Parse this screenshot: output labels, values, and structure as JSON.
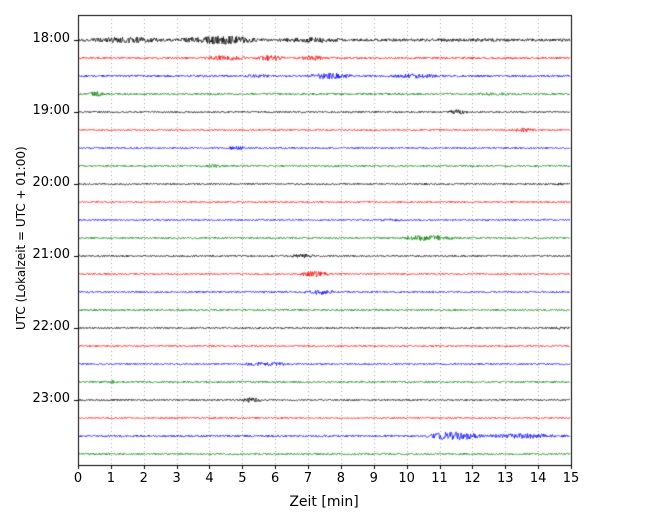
{
  "figure": {
    "background": "#ffffff",
    "frame_color": "#000000"
  },
  "chart_data": {
    "type": "line",
    "subtype": "seismogram-multitrace",
    "title": "",
    "xlabel": "Zeit  [min]",
    "ylabel": "UTC (Lokalzeit = UTC + 01:00)",
    "xlim": [
      0,
      15
    ],
    "x_ticks": [
      "0",
      "1",
      "2",
      "3",
      "4",
      "5",
      "6",
      "7",
      "8",
      "9",
      "10",
      "11",
      "12",
      "13",
      "14",
      "15"
    ],
    "grid": {
      "vertical": true,
      "style": "dotted",
      "color": "#aaaaaa"
    },
    "y_tick_labels": [
      "18:00",
      "19:00",
      "20:00",
      "21:00",
      "22:00",
      "23:00"
    ],
    "y_tick_rows": [
      0,
      4,
      8,
      12,
      16,
      20
    ],
    "rows_per_hour": 4,
    "minutes_per_row": 15,
    "colors": {
      "black": "#000000",
      "red": "#ff0000",
      "blue": "#0000ff",
      "green": "#008000"
    },
    "traces": [
      {
        "row": 0,
        "color": "black",
        "base_amp": 1.4,
        "events": [
          [
            0.0,
            3.0,
            3.0
          ],
          [
            3.0,
            5.7,
            4.4
          ],
          [
            5.7,
            8.5,
            2.6
          ],
          [
            8.5,
            15.0,
            1.6
          ]
        ]
      },
      {
        "row": 1,
        "color": "red",
        "base_amp": 1.0,
        "events": [
          [
            3.8,
            5.2,
            2.8
          ],
          [
            5.4,
            6.3,
            3.4
          ],
          [
            6.7,
            7.6,
            2.8
          ]
        ]
      },
      {
        "row": 2,
        "color": "blue",
        "base_amp": 1.0,
        "events": [
          [
            4.8,
            6.2,
            1.8
          ],
          [
            6.9,
            8.4,
            3.2
          ],
          [
            9.3,
            11.2,
            2.4
          ]
        ]
      },
      {
        "row": 3,
        "color": "green",
        "base_amp": 1.0,
        "events": [
          [
            0.3,
            0.8,
            3.0
          ],
          [
            11.8,
            13.6,
            1.6
          ]
        ]
      },
      {
        "row": 4,
        "color": "black",
        "base_amp": 0.8,
        "events": [
          [
            11.2,
            11.9,
            2.4
          ]
        ]
      },
      {
        "row": 5,
        "color": "red",
        "base_amp": 0.8,
        "events": [
          [
            13.1,
            14.1,
            2.2
          ]
        ]
      },
      {
        "row": 6,
        "color": "blue",
        "base_amp": 0.8,
        "events": [
          [
            4.4,
            5.3,
            1.9
          ]
        ]
      },
      {
        "row": 7,
        "color": "green",
        "base_amp": 0.9,
        "events": [
          [
            3.7,
            4.6,
            1.9
          ]
        ]
      },
      {
        "row": 8,
        "color": "black",
        "base_amp": 0.8,
        "events": [
          [
            14.3,
            15.0,
            1.4
          ]
        ]
      },
      {
        "row": 9,
        "color": "red",
        "base_amp": 0.8,
        "events": []
      },
      {
        "row": 10,
        "color": "blue",
        "base_amp": 0.8,
        "events": [
          [
            8.9,
            10.1,
            1.4
          ]
        ]
      },
      {
        "row": 11,
        "color": "green",
        "base_amp": 0.9,
        "events": [
          [
            9.7,
            11.6,
            2.9
          ]
        ]
      },
      {
        "row": 12,
        "color": "black",
        "base_amp": 0.8,
        "events": [
          [
            6.4,
            7.3,
            2.4
          ]
        ]
      },
      {
        "row": 13,
        "color": "red",
        "base_amp": 0.8,
        "events": [
          [
            6.7,
            7.7,
            2.9
          ]
        ]
      },
      {
        "row": 14,
        "color": "blue",
        "base_amp": 0.8,
        "events": [
          [
            6.8,
            7.9,
            2.7
          ]
        ]
      },
      {
        "row": 15,
        "color": "green",
        "base_amp": 0.9,
        "events": []
      },
      {
        "row": 16,
        "color": "black",
        "base_amp": 0.8,
        "events": [
          [
            14.4,
            15.0,
            1.7
          ]
        ]
      },
      {
        "row": 17,
        "color": "red",
        "base_amp": 0.8,
        "events": []
      },
      {
        "row": 18,
        "color": "blue",
        "base_amp": 0.8,
        "events": [
          [
            4.8,
            6.6,
            2.1
          ]
        ]
      },
      {
        "row": 19,
        "color": "green",
        "base_amp": 0.9,
        "events": [
          [
            0.7,
            1.3,
            1.9
          ]
        ]
      },
      {
        "row": 20,
        "color": "black",
        "base_amp": 0.8,
        "events": [
          [
            4.8,
            5.7,
            2.4
          ]
        ]
      },
      {
        "row": 21,
        "color": "red",
        "base_amp": 0.8,
        "events": []
      },
      {
        "row": 22,
        "color": "blue",
        "base_amp": 1.0,
        "events": [
          [
            10.6,
            12.3,
            4.6
          ],
          [
            12.2,
            15.0,
            2.6
          ]
        ]
      },
      {
        "row": 23,
        "color": "green",
        "base_amp": 0.9,
        "events": []
      }
    ]
  }
}
